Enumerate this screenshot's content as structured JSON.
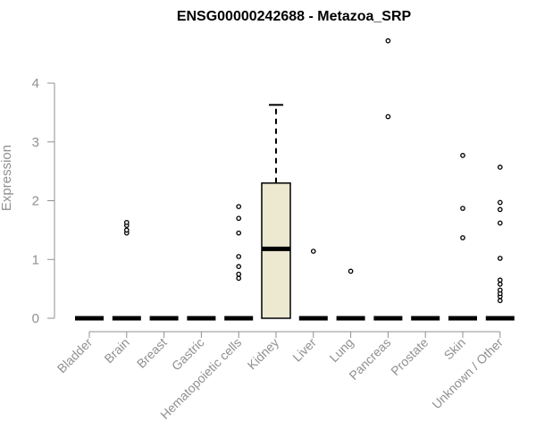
{
  "chart_data": {
    "type": "box",
    "title": "ENSG00000242688 - Metazoa_SRP",
    "xlabel": "",
    "ylabel": "Expression",
    "ylim": [
      0,
      4.8
    ],
    "yticks": [
      0,
      1,
      2,
      3,
      4
    ],
    "categories": [
      "Bladder",
      "Brain",
      "Breast",
      "Gastric",
      "Hematopoietic cells",
      "Kidney",
      "Liver",
      "Lung",
      "Pancreas",
      "Prostate",
      "Skin",
      "Unknown / Other"
    ],
    "boxes": [
      {
        "category": "Bladder",
        "min": 0,
        "q1": 0,
        "median": 0,
        "q3": 0,
        "max": 0,
        "outliers": []
      },
      {
        "category": "Brain",
        "min": 0,
        "q1": 0,
        "median": 0,
        "q3": 0,
        "max": 0,
        "outliers": [
          1.45,
          1.5,
          1.58,
          1.63
        ]
      },
      {
        "category": "Breast",
        "min": 0,
        "q1": 0,
        "median": 0,
        "q3": 0,
        "max": 0,
        "outliers": []
      },
      {
        "category": "Gastric",
        "min": 0,
        "q1": 0,
        "median": 0,
        "q3": 0,
        "max": 0,
        "outliers": []
      },
      {
        "category": "Hematopoietic cells",
        "min": 0,
        "q1": 0,
        "median": 0,
        "q3": 0,
        "max": 0,
        "outliers": [
          0.68,
          0.75,
          0.88,
          1.05,
          1.45,
          1.7,
          1.9
        ]
      },
      {
        "category": "Kidney",
        "min": 0,
        "q1": 0,
        "median": 1.18,
        "q3": 2.3,
        "max": 3.63,
        "outliers": []
      },
      {
        "category": "Liver",
        "min": 0,
        "q1": 0,
        "median": 0,
        "q3": 0,
        "max": 0,
        "outliers": [
          1.14
        ]
      },
      {
        "category": "Lung",
        "min": 0,
        "q1": 0,
        "median": 0,
        "q3": 0,
        "max": 0,
        "outliers": [
          0.8
        ]
      },
      {
        "category": "Pancreas",
        "min": 0,
        "q1": 0,
        "median": 0,
        "q3": 0,
        "max": 0,
        "outliers": [
          3.43,
          4.72
        ]
      },
      {
        "category": "Prostate",
        "min": 0,
        "q1": 0,
        "median": 0,
        "q3": 0,
        "max": 0,
        "outliers": []
      },
      {
        "category": "Skin",
        "min": 0,
        "q1": 0,
        "median": 0,
        "q3": 0,
        "max": 0,
        "outliers": [
          1.37,
          1.87,
          2.77
        ]
      },
      {
        "category": "Unknown / Other",
        "min": 0,
        "q1": 0,
        "median": 0,
        "q3": 0,
        "max": 0,
        "outliers": [
          0.3,
          0.37,
          0.42,
          0.48,
          0.58,
          0.65,
          1.02,
          1.62,
          1.85,
          1.97,
          2.57
        ]
      }
    ],
    "box_fill": "#EDE8D0",
    "grid": false,
    "legend": "none"
  }
}
